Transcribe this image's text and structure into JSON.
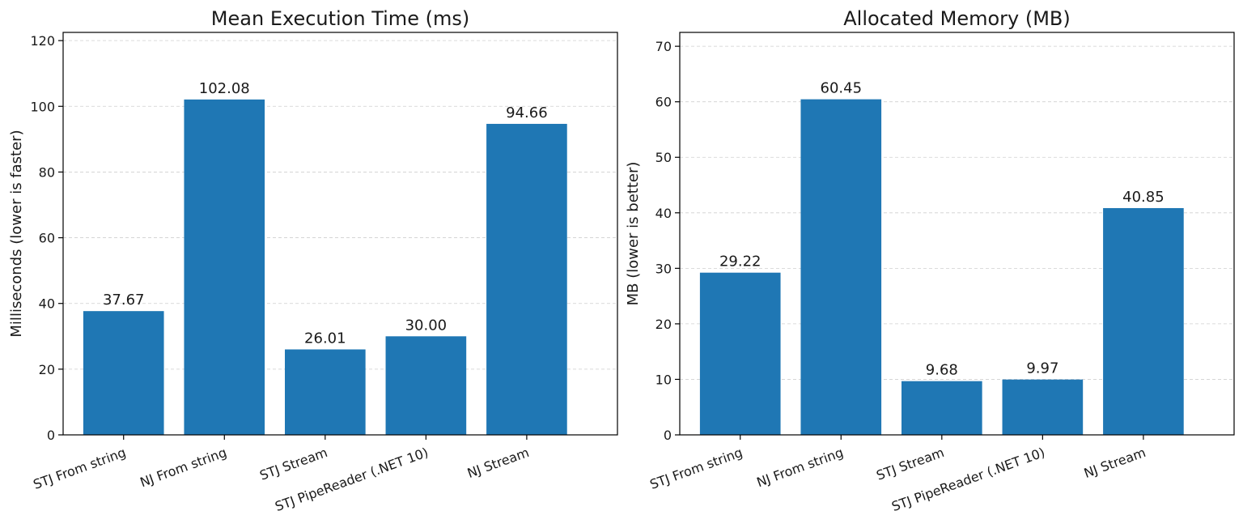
{
  "chart_data": [
    {
      "type": "bar",
      "title": "Mean Execution Time (ms)",
      "xlabel": "",
      "ylabel": "Milliseconds (lower is faster)",
      "categories": [
        "STJ From string",
        "NJ From string",
        "STJ Stream",
        "STJ PipeReader (.NET 10)",
        "NJ Stream"
      ],
      "values": [
        37.67,
        102.08,
        26.01,
        30.0,
        94.66
      ],
      "value_labels": [
        "37.67",
        "102.08",
        "26.01",
        "30.00",
        "94.66"
      ],
      "ylim": [
        0,
        122.5
      ],
      "yticks": [
        0,
        20,
        40,
        60,
        80,
        100,
        120
      ],
      "grid": "y-dashed",
      "bar_color": "#1f77b4"
    },
    {
      "type": "bar",
      "title": "Allocated Memory (MB)",
      "xlabel": "",
      "ylabel": "MB (lower is better)",
      "categories": [
        "STJ From string",
        "NJ From string",
        "STJ Stream",
        "STJ PipeReader (.NET 10)",
        "NJ Stream"
      ],
      "values": [
        29.22,
        60.45,
        9.68,
        9.97,
        40.85
      ],
      "value_labels": [
        "29.22",
        "60.45",
        "9.68",
        "9.97",
        "40.85"
      ],
      "ylim": [
        0,
        72.5
      ],
      "yticks": [
        0,
        10,
        20,
        30,
        40,
        50,
        60,
        70
      ],
      "grid": "y-dashed",
      "bar_color": "#1f77b4"
    }
  ]
}
